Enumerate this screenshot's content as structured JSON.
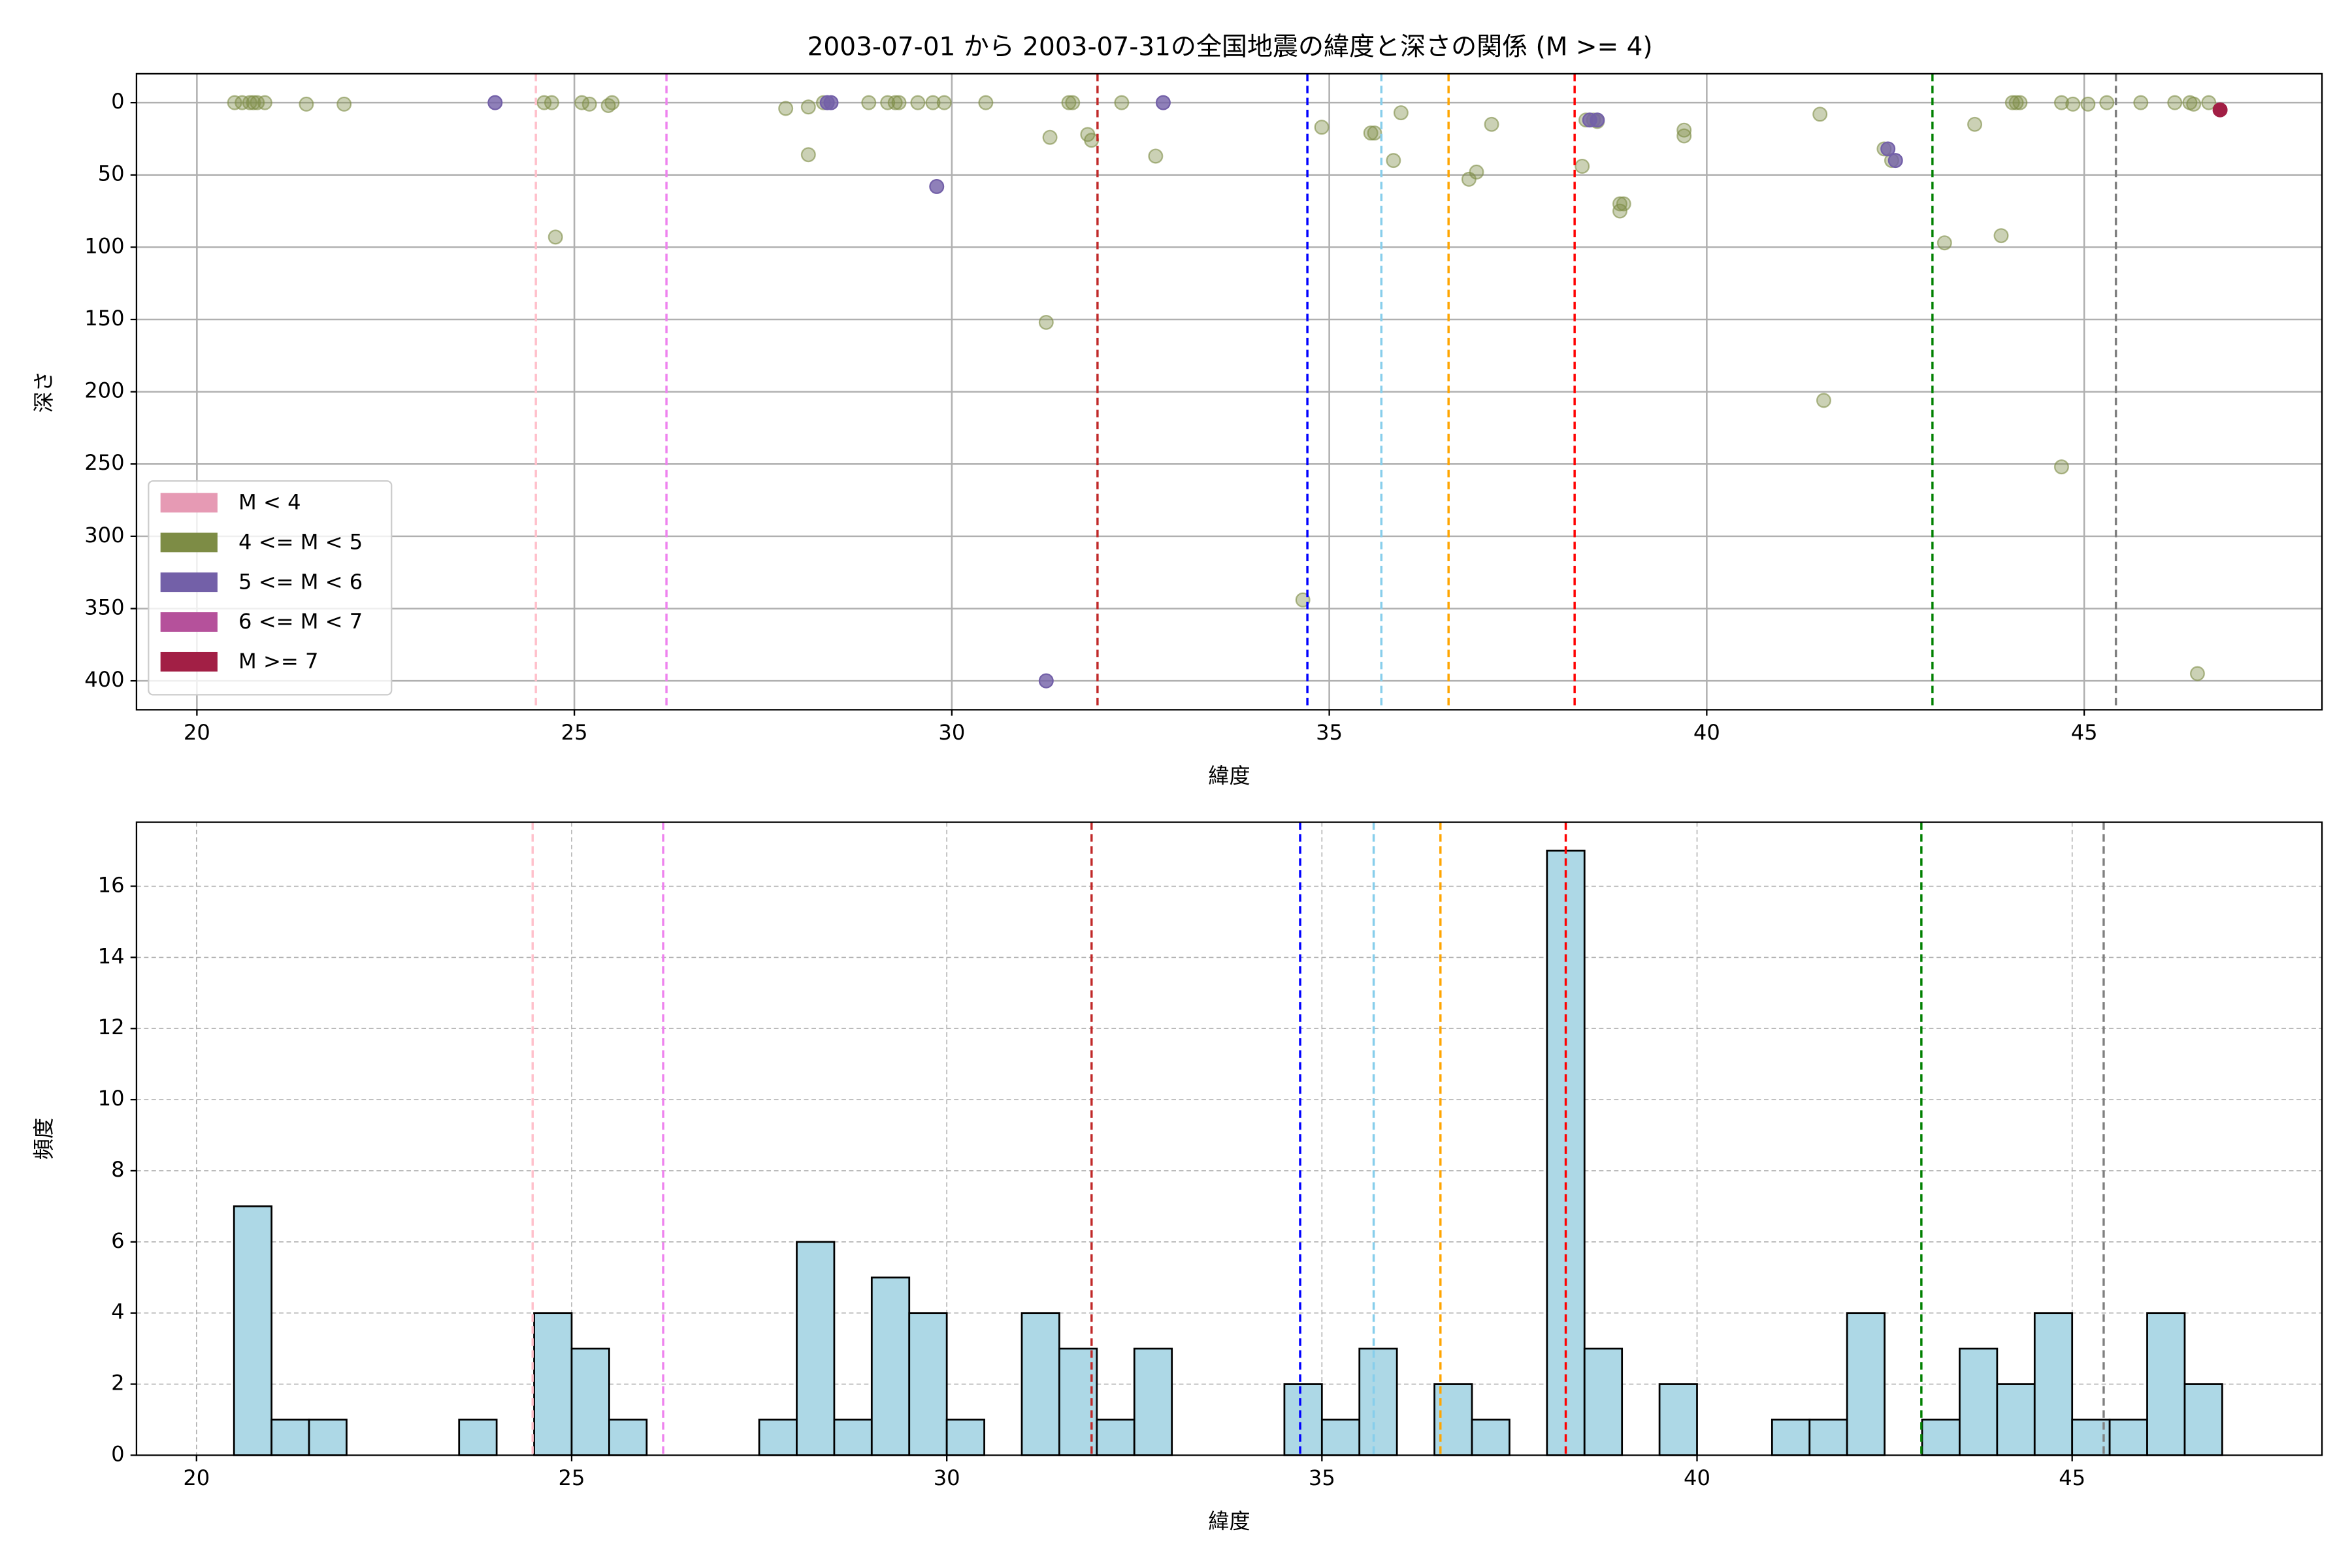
{
  "chart_data": [
    {
      "type": "scatter",
      "title": "2003-07-01 から 2003-07-31の全国地震の緯度と深さの関係 (M >= 4)",
      "xlabel": "緯度",
      "ylabel": "深さ",
      "xlim": [
        19.2,
        48.15
      ],
      "ylim": [
        420,
        -20
      ],
      "xticks": [
        20,
        25,
        30,
        35,
        40,
        45
      ],
      "yticks": [
        0,
        50,
        100,
        150,
        200,
        250,
        300,
        350,
        400
      ],
      "grid": "solid",
      "legend": "lower left",
      "series": [
        {
          "name": "M < 4",
          "color": "#e69ab4",
          "alpha": 0.4,
          "x": [],
          "y": []
        },
        {
          "name": "4 <= M < 5",
          "color": "#7d8c45",
          "alpha": 0.4,
          "x": [
            20.5,
            20.6,
            20.7,
            20.75,
            20.8,
            20.9,
            21.45,
            21.95,
            24.6,
            24.7,
            24.75,
            25.1,
            25.2,
            25.45,
            25.5,
            27.8,
            28.1,
            28.1,
            28.3,
            28.9,
            29.15,
            29.25,
            29.3,
            29.55,
            29.75,
            29.9,
            30.45,
            31.3,
            31.25,
            31.55,
            31.6,
            31.8,
            31.85,
            32.25,
            32.7,
            34.65,
            34.9,
            35.55,
            35.6,
            35.85,
            35.95,
            36.85,
            36.95,
            37.15,
            38.35,
            38.4,
            38.5,
            38.55,
            38.85,
            38.85,
            38.9,
            39.7,
            39.7,
            41.5,
            41.55,
            42.35,
            42.45,
            43.15,
            43.55,
            43.9,
            44.05,
            44.1,
            44.15,
            44.7,
            44.7,
            44.85,
            45.05,
            45.3,
            45.75,
            46.2,
            46.4,
            46.45,
            46.5,
            46.65
          ],
          "y": [
            0,
            0,
            0,
            0,
            0,
            0,
            1,
            1,
            0,
            0,
            93,
            0,
            1,
            2,
            0,
            4,
            3,
            36,
            0,
            0,
            0,
            0,
            0,
            0,
            0,
            0,
            0,
            24,
            152,
            0,
            0,
            22,
            26,
            0,
            37,
            344,
            17,
            21,
            21,
            40,
            7,
            53,
            48,
            15,
            44,
            12,
            12,
            13,
            70,
            75,
            70,
            19,
            23,
            8,
            206,
            32,
            40,
            97,
            15,
            92,
            0,
            0,
            0,
            0,
            252,
            1,
            1,
            0,
            0,
            0,
            0,
            1,
            395,
            0
          ]
        },
        {
          "name": "5 <= M < 6",
          "color": "#7360a8",
          "alpha": 0.8,
          "x": [
            23.95,
            28.35,
            28.4,
            29.8,
            31.25,
            32.8,
            38.45,
            38.55,
            42.4,
            42.5
          ],
          "y": [
            0,
            0,
            0,
            58,
            400,
            0,
            12,
            12,
            32,
            40
          ]
        },
        {
          "name": "6 <= M < 7",
          "color": "#b5519b",
          "alpha": 0.8,
          "x": [],
          "y": []
        },
        {
          "name": "M >= 7",
          "color": "#a21f45",
          "alpha": 1,
          "x": [
            46.8
          ],
          "y": [
            5
          ]
        }
      ],
      "vlines": [
        {
          "x": 24.49,
          "color": "pink"
        },
        {
          "x": 26.22,
          "color": "violet"
        },
        {
          "x": 31.93,
          "color": "#c02828"
        },
        {
          "x": 34.71,
          "color": "blue"
        },
        {
          "x": 35.69,
          "color": "skyblue"
        },
        {
          "x": 36.58,
          "color": "orange"
        },
        {
          "x": 38.25,
          "color": "red"
        },
        {
          "x": 42.99,
          "color": "green"
        },
        {
          "x": 45.42,
          "color": "gray"
        }
      ]
    },
    {
      "type": "histogram",
      "xlabel": "緯度",
      "ylabel": "頻度",
      "bins": [
        20.5,
        21,
        21.5,
        22,
        22.5,
        23,
        23.5,
        24,
        24.5,
        25,
        25.5,
        26,
        26.5,
        27,
        27.5,
        28,
        28.5,
        29,
        29.5,
        30,
        30.5,
        31,
        31.5,
        32,
        32.5,
        33,
        33.5,
        34,
        34.5,
        35,
        35.5,
        36,
        36.5,
        37,
        37.5,
        38,
        38.5,
        39,
        39.5,
        40,
        40.5,
        41,
        41.5,
        42,
        42.5,
        43,
        43.5,
        44,
        44.5,
        45,
        45.5,
        46,
        46.5,
        47
      ],
      "counts": [
        7,
        1,
        1,
        0,
        0,
        0,
        1,
        0,
        4,
        3,
        1,
        0,
        0,
        0,
        1,
        6,
        1,
        5,
        4,
        1,
        0,
        4,
        3,
        1,
        3,
        0,
        0,
        0,
        2,
        1,
        3,
        0,
        2,
        1,
        0,
        17,
        3,
        0,
        2,
        0,
        0,
        1,
        1,
        4,
        0,
        1,
        3,
        2,
        4,
        1,
        1,
        4,
        2
      ],
      "color": "#add8e6",
      "edgecolor": "#000000",
      "xlim": [
        19.2,
        48.33
      ],
      "ylim": [
        0,
        17.8
      ],
      "xticks": [
        20,
        25,
        30,
        35,
        40,
        45
      ],
      "yticks": [
        0,
        2,
        4,
        6,
        8,
        10,
        12,
        14,
        16
      ],
      "grid": "dashed",
      "vlines": [
        {
          "x": 24.48,
          "color": "pink"
        },
        {
          "x": 26.22,
          "color": "violet"
        },
        {
          "x": 31.93,
          "color": "#c02828"
        },
        {
          "x": 34.71,
          "color": "blue"
        },
        {
          "x": 35.69,
          "color": "skyblue"
        },
        {
          "x": 36.58,
          "color": "orange"
        },
        {
          "x": 38.25,
          "color": "red"
        },
        {
          "x": 42.99,
          "color": "green"
        },
        {
          "x": 45.42,
          "color": "gray"
        }
      ]
    }
  ]
}
